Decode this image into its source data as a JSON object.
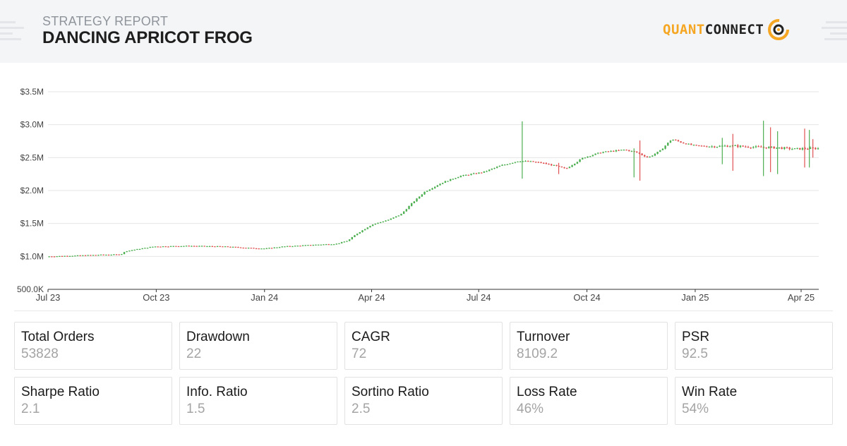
{
  "header": {
    "subtitle": "STRATEGY REPORT",
    "title": "DANCING APRICOT FROG"
  },
  "logo": {
    "quant": "QUANT",
    "connect": "CONNECT",
    "accent_color": "#f5a623"
  },
  "chart_data": {
    "type": "candlestick",
    "ylabel_ticks": [
      "500.0K",
      "$1.0M",
      "$1.5M",
      "$2.0M",
      "$2.5M",
      "$3.0M",
      "$3.5M"
    ],
    "xlabel_ticks": [
      "Jul 23",
      "Oct 23",
      "Jan 24",
      "Apr 24",
      "Jul 24",
      "Oct 24",
      "Jan 25",
      "Apr 25"
    ],
    "ylim": [
      500000,
      3500000
    ],
    "x_range_days": [
      0,
      655
    ],
    "up_color": "#4caf50",
    "down_color": "#e05252",
    "grid": true,
    "equity_points": [
      [
        0,
        1000000
      ],
      [
        20,
        1010000
      ],
      [
        45,
        1025000
      ],
      [
        62,
        1030000
      ],
      [
        66,
        1080000
      ],
      [
        90,
        1150000
      ],
      [
        120,
        1160000
      ],
      [
        150,
        1150000
      ],
      [
        175,
        1125000
      ],
      [
        185,
        1120000
      ],
      [
        200,
        1150000
      ],
      [
        230,
        1180000
      ],
      [
        245,
        1190000
      ],
      [
        255,
        1240000
      ],
      [
        262,
        1340000
      ],
      [
        275,
        1480000
      ],
      [
        290,
        1560000
      ],
      [
        300,
        1640000
      ],
      [
        310,
        1820000
      ],
      [
        320,
        1980000
      ],
      [
        335,
        2120000
      ],
      [
        350,
        2220000
      ],
      [
        370,
        2280000
      ],
      [
        385,
        2380000
      ],
      [
        400,
        2450000
      ],
      [
        410,
        2440000
      ],
      [
        420,
        2420000
      ],
      [
        430,
        2380000
      ],
      [
        440,
        2330000
      ],
      [
        455,
        2500000
      ],
      [
        470,
        2580000
      ],
      [
        490,
        2620000
      ],
      [
        500,
        2580000
      ],
      [
        510,
        2500000
      ],
      [
        520,
        2600000
      ],
      [
        530,
        2780000
      ],
      [
        540,
        2720000
      ],
      [
        550,
        2680000
      ],
      [
        565,
        2670000
      ],
      [
        580,
        2680000
      ],
      [
        600,
        2660000
      ],
      [
        620,
        2650000
      ],
      [
        635,
        2630000
      ],
      [
        645,
        2640000
      ],
      [
        655,
        2640000
      ]
    ],
    "spikes": [
      [
        403,
        2180000,
        3050000
      ],
      [
        434,
        2250000,
        2420000
      ],
      [
        498,
        2200000,
        2640000
      ],
      [
        503,
        2150000,
        2760000
      ],
      [
        573,
        2400000,
        2800000
      ],
      [
        582,
        2300000,
        2860000
      ],
      [
        608,
        2220000,
        3060000
      ],
      [
        614,
        2280000,
        2960000
      ],
      [
        620,
        2250000,
        2900000
      ],
      [
        643,
        2350000,
        2940000
      ],
      [
        647,
        2350000,
        2920000
      ],
      [
        650,
        2500000,
        2780000
      ]
    ]
  },
  "metrics": [
    {
      "label": "Total Orders",
      "value": "53828"
    },
    {
      "label": "Drawdown",
      "value": "22"
    },
    {
      "label": "CAGR",
      "value": "72"
    },
    {
      "label": "Turnover",
      "value": "8109.2"
    },
    {
      "label": "PSR",
      "value": "92.5"
    },
    {
      "label": "Sharpe Ratio",
      "value": "2.1"
    },
    {
      "label": "Info. Ratio",
      "value": "1.5"
    },
    {
      "label": "Sortino Ratio",
      "value": "2.5"
    },
    {
      "label": "Loss Rate",
      "value": "46%"
    },
    {
      "label": "Win Rate",
      "value": "54%"
    }
  ]
}
